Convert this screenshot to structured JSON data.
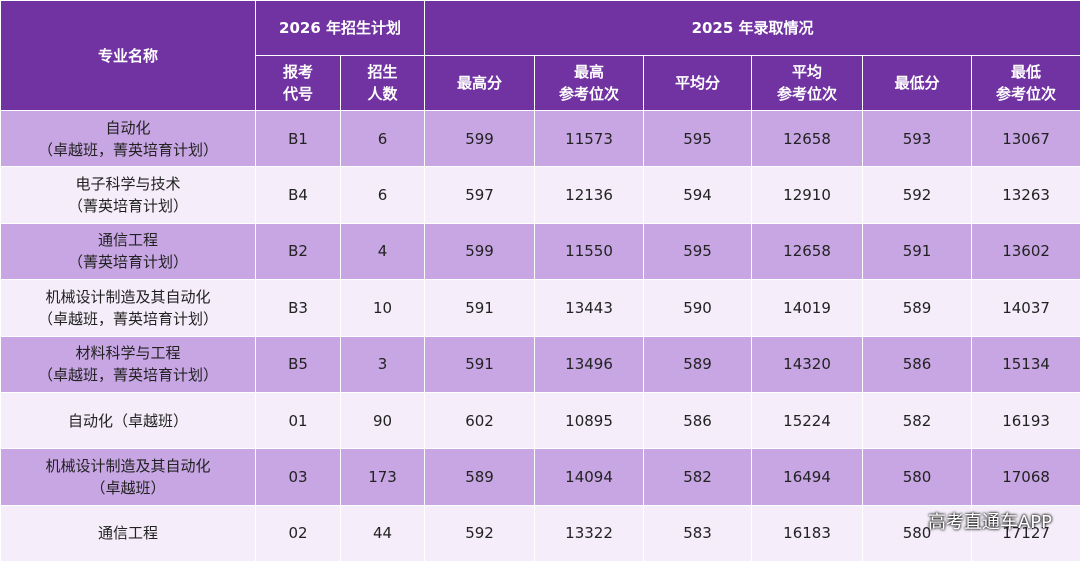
{
  "header": {
    "name": "专业名称",
    "group_2026": "2026 年招生计划",
    "group_2025": "2025 年录取情况",
    "columns": [
      [
        "报考",
        "代号"
      ],
      [
        "招生",
        "人数"
      ],
      [
        "最高分"
      ],
      [
        "最高",
        "参考位次"
      ],
      [
        "平均分"
      ],
      [
        "平均",
        "参考位次"
      ],
      [
        "最低分"
      ],
      [
        "最低",
        "参考位次"
      ]
    ]
  },
  "table": {
    "rows": [
      {
        "name": [
          "自动化",
          "（卓越班，菁英培育计划）"
        ],
        "cells": [
          "B1",
          "6",
          "599",
          "11573",
          "595",
          "12658",
          "593",
          "13067"
        ]
      },
      {
        "name": [
          "电子科学与技术",
          "（菁英培育计划）"
        ],
        "cells": [
          "B4",
          "6",
          "597",
          "12136",
          "594",
          "12910",
          "592",
          "13263"
        ]
      },
      {
        "name": [
          "通信工程",
          "（菁英培育计划）"
        ],
        "cells": [
          "B2",
          "4",
          "599",
          "11550",
          "595",
          "12658",
          "591",
          "13602"
        ]
      },
      {
        "name": [
          "机械设计制造及其自动化",
          "（卓越班，菁英培育计划）"
        ],
        "cells": [
          "B3",
          "10",
          "591",
          "13443",
          "590",
          "14019",
          "589",
          "14037"
        ]
      },
      {
        "name": [
          "材料科学与工程",
          "（卓越班，菁英培育计划）"
        ],
        "cells": [
          "B5",
          "3",
          "591",
          "13496",
          "589",
          "14320",
          "586",
          "15134"
        ]
      },
      {
        "name": [
          "自动化（卓越班）"
        ],
        "cells": [
          "01",
          "90",
          "602",
          "10895",
          "586",
          "15224",
          "582",
          "16193"
        ]
      },
      {
        "name": [
          "机械设计制造及其自动化",
          "（卓越班）"
        ],
        "cells": [
          "03",
          "173",
          "589",
          "14094",
          "582",
          "16494",
          "580",
          "17068"
        ]
      },
      {
        "name": [
          "通信工程"
        ],
        "cells": [
          "02",
          "44",
          "592",
          "13322",
          "583",
          "16183",
          "580",
          "17127"
        ]
      }
    ]
  },
  "watermark": "高考直通车APP"
}
